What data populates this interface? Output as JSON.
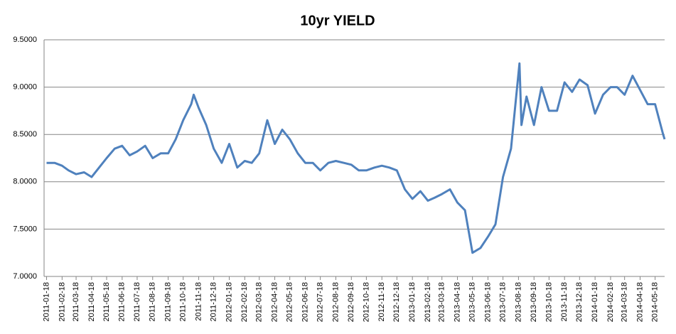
{
  "chart_data": {
    "type": "line",
    "title": "10yr YIELD",
    "x": [
      "2011-01-18",
      "2011-02-03",
      "2011-02-18",
      "2011-03-03",
      "2011-03-18",
      "2011-04-03",
      "2011-04-18",
      "2011-05-03",
      "2011-05-18",
      "2011-06-03",
      "2011-06-18",
      "2011-07-03",
      "2011-07-18",
      "2011-08-03",
      "2011-08-18",
      "2011-09-03",
      "2011-09-18",
      "2011-10-03",
      "2011-10-18",
      "2011-11-03",
      "2011-11-08",
      "2011-11-18",
      "2011-12-03",
      "2011-12-18",
      "2012-01-03",
      "2012-01-18",
      "2012-02-03",
      "2012-02-18",
      "2012-03-03",
      "2012-03-18",
      "2012-04-03",
      "2012-04-18",
      "2012-05-03",
      "2012-05-18",
      "2012-06-03",
      "2012-06-18",
      "2012-07-03",
      "2012-07-18",
      "2012-08-03",
      "2012-08-18",
      "2012-09-03",
      "2012-09-18",
      "2012-10-03",
      "2012-10-18",
      "2012-11-03",
      "2012-11-18",
      "2012-12-03",
      "2012-12-18",
      "2013-01-03",
      "2013-01-18",
      "2013-02-03",
      "2013-02-18",
      "2013-03-03",
      "2013-03-18",
      "2013-04-03",
      "2013-04-18",
      "2013-05-03",
      "2013-05-18",
      "2013-06-03",
      "2013-06-18",
      "2013-07-03",
      "2013-07-18",
      "2013-08-03",
      "2013-08-20",
      "2013-08-24",
      "2013-09-03",
      "2013-09-18",
      "2013-10-03",
      "2013-10-18",
      "2013-11-03",
      "2013-11-18",
      "2013-12-03",
      "2013-12-18",
      "2014-01-03",
      "2014-01-18",
      "2014-02-03",
      "2014-02-18",
      "2014-03-03",
      "2014-03-18",
      "2014-04-03",
      "2014-04-18",
      "2014-05-03",
      "2014-05-18",
      "2014-06-03",
      "2014-06-06"
    ],
    "series": [
      {
        "name": "10yr YIELD",
        "color": "#4f81bd",
        "values": [
          8.2,
          8.2,
          8.17,
          8.12,
          8.08,
          8.1,
          8.05,
          8.15,
          8.25,
          8.35,
          8.38,
          8.28,
          8.32,
          8.38,
          8.25,
          8.3,
          8.3,
          8.45,
          8.65,
          8.82,
          8.92,
          8.78,
          8.6,
          8.35,
          8.2,
          8.4,
          8.15,
          8.22,
          8.2,
          8.3,
          8.65,
          8.4,
          8.55,
          8.45,
          8.3,
          8.2,
          8.2,
          8.12,
          8.2,
          8.22,
          8.2,
          8.18,
          8.12,
          8.12,
          8.15,
          8.17,
          8.15,
          8.12,
          7.92,
          7.82,
          7.9,
          7.8,
          7.83,
          7.87,
          7.92,
          7.78,
          7.7,
          7.25,
          7.3,
          7.42,
          7.55,
          8.05,
          8.35,
          9.25,
          8.6,
          8.9,
          8.6,
          9.0,
          8.75,
          8.75,
          9.05,
          8.95,
          9.08,
          9.02,
          8.72,
          8.92,
          9.0,
          9.0,
          8.92,
          9.12,
          8.97,
          8.82,
          8.82,
          8.5,
          8.45
        ]
      }
    ],
    "xlim": [
      "2011-01-13",
      "2014-06-06"
    ],
    "xticks": [
      "2011-01-18",
      "2011-02-18",
      "2011-03-18",
      "2011-04-18",
      "2011-05-18",
      "2011-06-18",
      "2011-07-18",
      "2011-08-18",
      "2011-09-18",
      "2011-10-18",
      "2011-11-18",
      "2011-12-18",
      "2012-01-18",
      "2012-02-18",
      "2012-03-18",
      "2012-04-18",
      "2012-05-18",
      "2012-06-18",
      "2012-07-18",
      "2012-08-18",
      "2012-09-18",
      "2012-10-18",
      "2012-11-18",
      "2012-12-18",
      "2013-01-18",
      "2013-02-18",
      "2013-03-18",
      "2013-04-18",
      "2013-05-18",
      "2013-06-18",
      "2013-07-18",
      "2013-08-18",
      "2013-09-18",
      "2013-10-18",
      "2013-11-18",
      "2013-12-18",
      "2014-01-18",
      "2014-02-18",
      "2014-03-18",
      "2014-04-18",
      "2014-05-18"
    ],
    "ylim": [
      7,
      9.5
    ],
    "yticks": [
      {
        "value": 7,
        "label": "7.0000"
      },
      {
        "value": 7.5,
        "label": "7.5000"
      },
      {
        "value": 8,
        "label": "8.0000"
      },
      {
        "value": 8.5,
        "label": "8.5000"
      },
      {
        "value": 9,
        "label": "9.0000"
      },
      {
        "value": 9.5,
        "label": "9.5000"
      }
    ],
    "grid": true
  }
}
